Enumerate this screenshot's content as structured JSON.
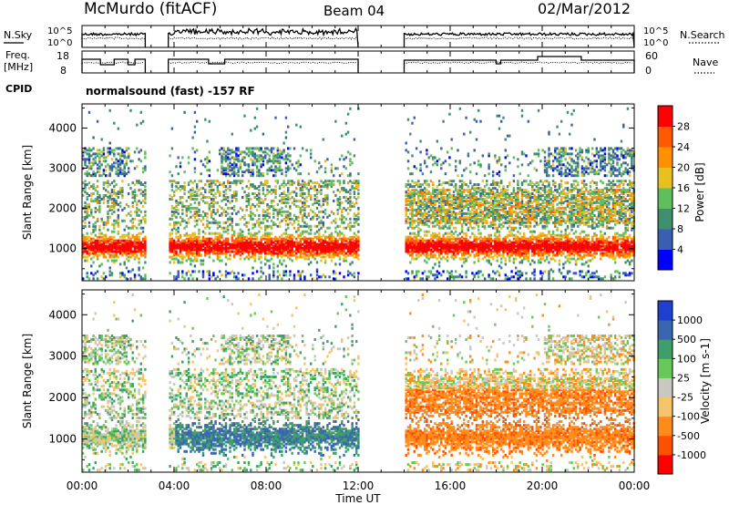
{
  "header": {
    "station": "McMurdo (fitACF)",
    "beam": "Beam 04",
    "date": "02/Mar/2012"
  },
  "top_panels": {
    "nsky_label": "N.Sky",
    "nsearch_label": "N.Search",
    "noise_ticks": [
      "10^5",
      "10^0"
    ],
    "freq_label_1": "Freq.",
    "freq_label_2": "[MHz]",
    "freq_ticks": [
      "18",
      "8"
    ],
    "nave_label": "Nave",
    "nave_ticks": [
      "60",
      "0"
    ],
    "cpid_label": "CPID",
    "cpid_text": "normalsound (fast) -157 RF"
  },
  "x_axis": {
    "title": "Time UT",
    "ticks": [
      "00:00",
      "04:00",
      "08:00",
      "12:00",
      "16:00",
      "20:00",
      "00:00"
    ]
  },
  "colors": {
    "power": [
      "#0000ff",
      "#3a5fb0",
      "#3f8f6f",
      "#5fbf5f",
      "#e8c020",
      "#ff9000",
      "#ff5a00",
      "#ff0000"
    ],
    "velocity": [
      "#ff0000",
      "#ff5000",
      "#ff8c1a",
      "#f5c46a",
      "#c8c8c0",
      "#68c858",
      "#3f9f6a",
      "#3a66b0",
      "#1f3fd0"
    ]
  },
  "chart_data": [
    {
      "type": "heatmap",
      "title": "Power",
      "ylabel": "Slant Range [km]",
      "xlabel": "",
      "ylim": [
        200,
        4600
      ],
      "yticks": [
        "1000",
        "2000",
        "3000",
        "4000"
      ],
      "colorbar_label": "Power [dB]",
      "colorbar_ticks": [
        "4",
        "8",
        "12",
        "16",
        "20",
        "24",
        "28"
      ],
      "data_gaps_ut_hours": [
        [
          2.75,
          3.75
        ],
        [
          12.0,
          14.0
        ]
      ]
    },
    {
      "type": "heatmap",
      "title": "Velocity",
      "ylabel": "Slant Range [km]",
      "xlabel": "Time UT",
      "ylim": [
        200,
        4600
      ],
      "yticks": [
        "1000",
        "2000",
        "3000",
        "4000"
      ],
      "colorbar_label": "Velocity [m s-1]",
      "colorbar_ticks": [
        "1000",
        "500",
        "100",
        "25",
        "-25",
        "-100",
        "-500",
        "-1000"
      ],
      "data_gaps_ut_hours": [
        [
          2.75,
          3.75
        ],
        [
          12.0,
          14.0
        ]
      ]
    }
  ]
}
